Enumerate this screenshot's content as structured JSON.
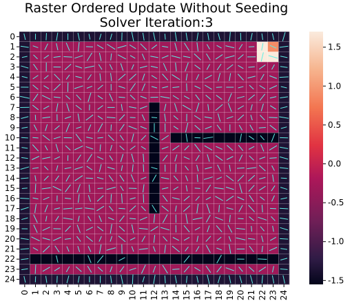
{
  "chart_data": {
    "type": "heatmap",
    "title": "Raster Ordered Update Without Seeding",
    "subtitle": "Solver Iteration:3",
    "xlabel": "",
    "ylabel": "",
    "x_ticks": [
      "0",
      "1",
      "2",
      "3",
      "4",
      "5",
      "6",
      "7",
      "8",
      "9",
      "10",
      "11",
      "12",
      "13",
      "14",
      "15",
      "16",
      "17",
      "18",
      "19",
      "20",
      "21",
      "22",
      "23",
      "24"
    ],
    "y_ticks": [
      "0",
      "1",
      "2",
      "3",
      "4",
      "5",
      "6",
      "7",
      "8",
      "9",
      "10",
      "11",
      "12",
      "13",
      "14",
      "15",
      "16",
      "17",
      "18",
      "19",
      "20",
      "21",
      "22",
      "23",
      "24"
    ],
    "colorbar": {
      "min": -1.55,
      "max": 1.7,
      "ticks": [
        "-1.5",
        "-1.0",
        "-0.5",
        "0.0",
        "0.5",
        "1.0",
        "1.5"
      ],
      "tick_values": [
        -1.5,
        -1.0,
        -0.5,
        0.0,
        0.5,
        1.0,
        1.5
      ]
    },
    "background_value": -0.3,
    "border_value": -1.35,
    "wall_value": -1.55,
    "cells": [
      {
        "row": 1,
        "col": 22,
        "value": 1.7
      },
      {
        "row": 2,
        "col": 22,
        "value": 1.7
      },
      {
        "row": 2,
        "col": 23,
        "value": 1.7
      },
      {
        "row": 1,
        "col": 23,
        "value": 0.9
      }
    ],
    "walls": [
      {
        "row": 22,
        "col_from": 1,
        "col_to": 23
      },
      {
        "row": 10,
        "col_from": 14,
        "col_to": 23
      },
      {
        "col": 12,
        "row_from": 7,
        "row_to": 17
      }
    ],
    "grid": true,
    "vector_field": true,
    "colors": {
      "arrow": "#5ef0e6",
      "grid": "#ffffff"
    }
  }
}
